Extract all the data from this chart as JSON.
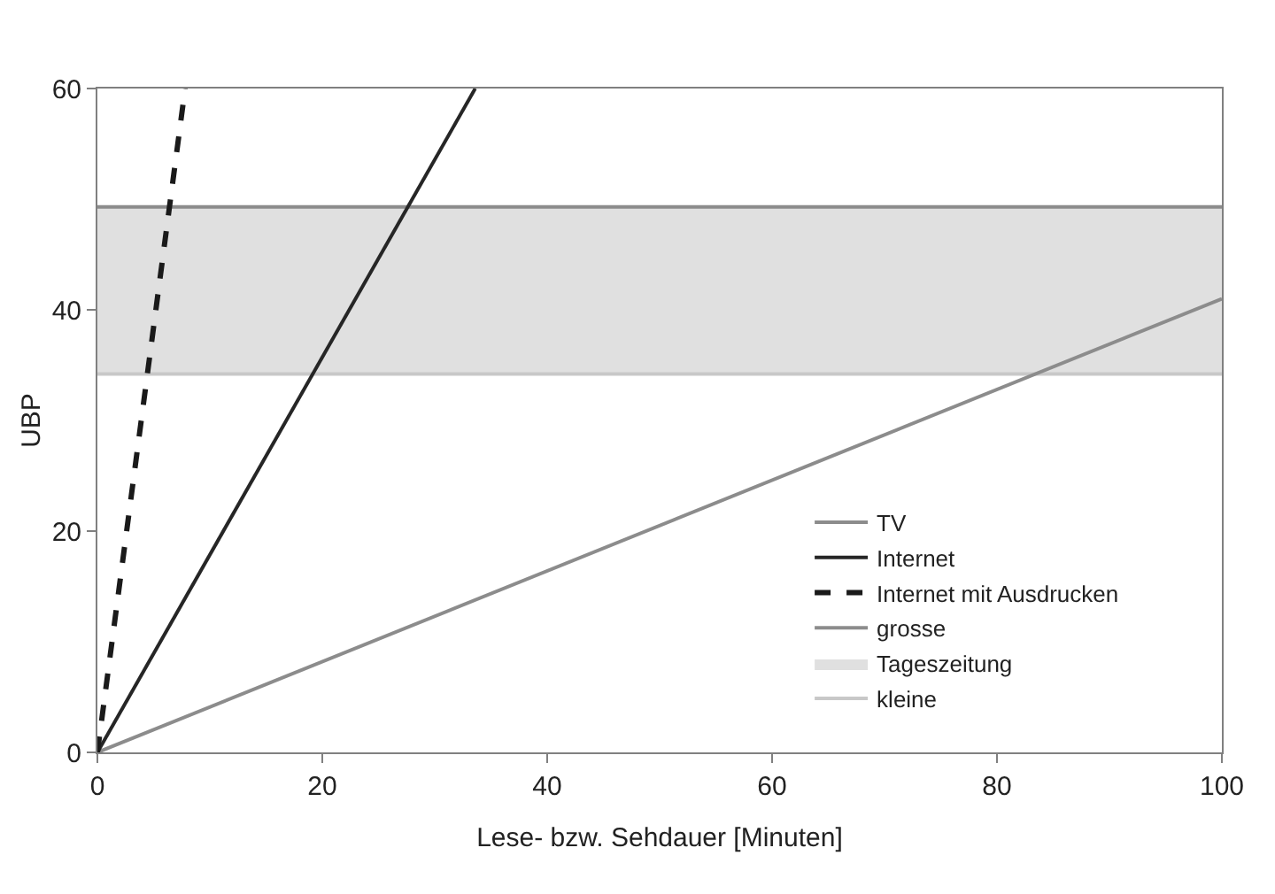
{
  "chart_data": {
    "type": "line",
    "xlabel": "Lese- bzw. Sehdauer [Minuten]",
    "ylabel": "UBP",
    "xlim": [
      0,
      100
    ],
    "ylim": [
      0,
      60
    ],
    "xticks": [
      0,
      20,
      40,
      60,
      80,
      100
    ],
    "yticks": [
      0,
      20,
      40,
      60
    ],
    "legend": "bottom right",
    "marker": "none",
    "series": [
      {
        "name": "TV",
        "color": "#8c8c8c",
        "x": [
          0,
          100
        ],
        "values": [
          0,
          41
        ],
        "line_style": "solid"
      },
      {
        "name": "Internet",
        "color": "#262626",
        "x": [
          0,
          33.6
        ],
        "values": [
          0,
          60
        ],
        "line_style": "solid"
      },
      {
        "name": "Internet mit Ausdrucken",
        "color": "#1a1a1a",
        "x": [
          0,
          7.8
        ],
        "values": [
          0,
          60
        ],
        "line_style": "dashed"
      }
    ],
    "ref_lines": [
      {
        "axis": "y",
        "value": 49.3,
        "label": "grosse",
        "color": "#8c8c8c"
      },
      {
        "axis": "y",
        "value": 34.2,
        "label": "kleine",
        "color": "#c8c8c8"
      }
    ],
    "bands": [
      {
        "axis": "y",
        "from": 34.2,
        "to": 49.3,
        "label": "Tageszeitung",
        "color": "#e0e0e0"
      }
    ]
  }
}
